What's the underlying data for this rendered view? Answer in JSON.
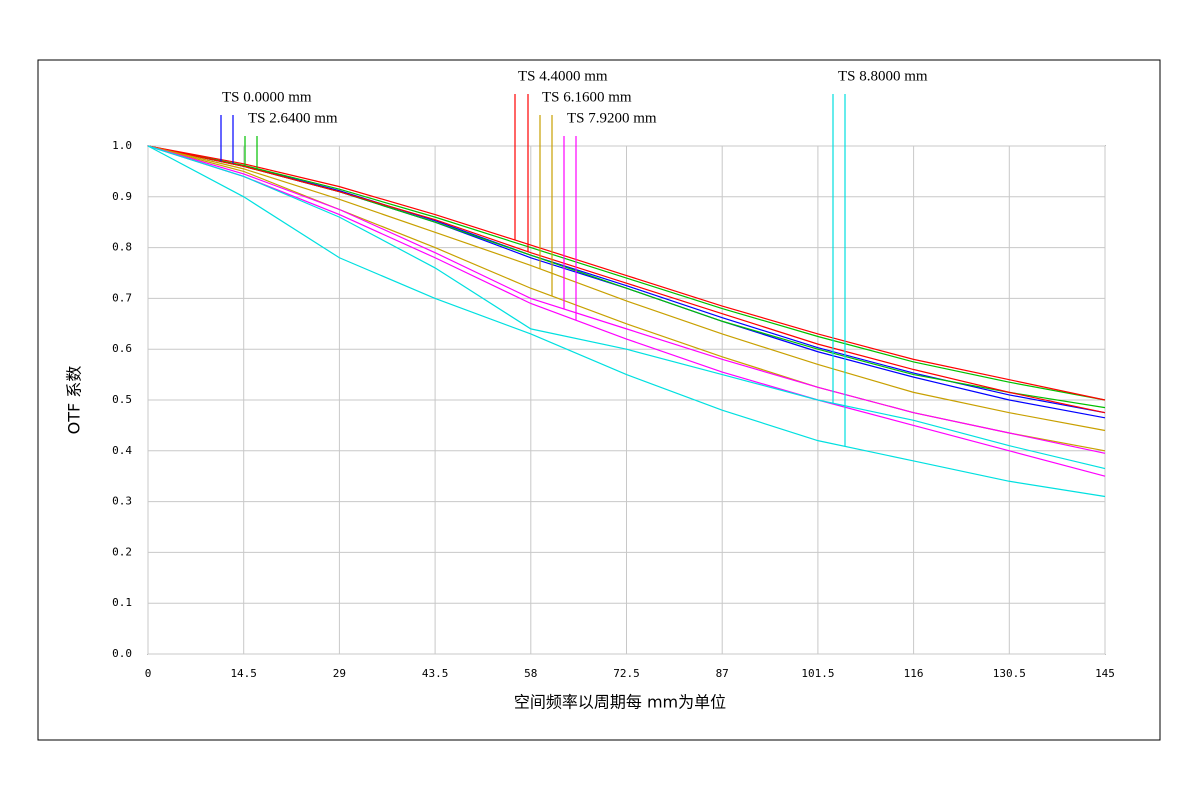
{
  "chart_data": {
    "type": "line",
    "xlabel": "空间频率以周期每 mm为单位",
    "ylabel": "OTF 系数",
    "x": [
      0,
      14.5,
      29,
      43.5,
      58,
      72.5,
      87,
      101.5,
      116,
      130.5,
      145
    ],
    "legend": [
      "TS 0.0000 mm",
      "TS 2.6400 mm",
      "TS 4.4000 mm",
      "TS 6.1600 mm",
      "TS 7.9200 mm",
      "TS 8.8000 mm"
    ],
    "series": [
      {
        "color": "#0000ff",
        "values": [
          1,
          0.96,
          0.91,
          0.85,
          0.78,
          0.72,
          0.655,
          0.595,
          0.545,
          0.5,
          0.465
        ]
      },
      {
        "color": "#0000ff",
        "values": [
          1,
          0.961,
          0.912,
          0.853,
          0.785,
          0.725,
          0.662,
          0.603,
          0.553,
          0.51,
          0.475
        ]
      },
      {
        "color": "#00c000",
        "values": [
          1,
          0.962,
          0.915,
          0.86,
          0.8,
          0.74,
          0.68,
          0.625,
          0.575,
          0.535,
          0.5
        ]
      },
      {
        "color": "#00c000",
        "values": [
          1,
          0.96,
          0.91,
          0.85,
          0.785,
          0.72,
          0.655,
          0.6,
          0.55,
          0.515,
          0.485
        ]
      },
      {
        "color": "#ff0000",
        "values": [
          1,
          0.965,
          0.92,
          0.865,
          0.805,
          0.745,
          0.685,
          0.63,
          0.58,
          0.54,
          0.5
        ]
      },
      {
        "color": "#ff0000",
        "values": [
          1,
          0.96,
          0.91,
          0.855,
          0.79,
          0.73,
          0.67,
          0.61,
          0.56,
          0.515,
          0.475
        ]
      },
      {
        "color": "#c8a000",
        "values": [
          1,
          0.955,
          0.895,
          0.83,
          0.765,
          0.695,
          0.63,
          0.57,
          0.515,
          0.475,
          0.44
        ]
      },
      {
        "color": "#c8a000",
        "values": [
          1,
          0.95,
          0.875,
          0.8,
          0.72,
          0.65,
          0.585,
          0.525,
          0.475,
          0.435,
          0.4
        ]
      },
      {
        "color": "#ff00ff",
        "values": [
          1,
          0.945,
          0.875,
          0.79,
          0.7,
          0.64,
          0.58,
          0.525,
          0.475,
          0.435,
          0.395
        ]
      },
      {
        "color": "#ff00ff",
        "values": [
          1,
          0.94,
          0.865,
          0.78,
          0.69,
          0.62,
          0.555,
          0.5,
          0.45,
          0.4,
          0.35
        ]
      },
      {
        "color": "#00e0e0",
        "values": [
          1,
          0.94,
          0.86,
          0.76,
          0.64,
          0.6,
          0.55,
          0.5,
          0.46,
          0.41,
          0.365
        ]
      },
      {
        "color": "#00e0e0",
        "values": [
          1,
          0.9,
          0.78,
          0.7,
          0.63,
          0.55,
          0.48,
          0.42,
          0.38,
          0.34,
          0.31
        ]
      }
    ],
    "xlim": [
      0,
      145
    ],
    "ylim": [
      0,
      1
    ],
    "xticks": [
      0,
      14.5,
      29,
      43.5,
      58,
      72.5,
      87,
      101.5,
      116,
      130.5,
      145
    ],
    "yticks": [
      {
        "value": 0,
        "label": "0.0"
      },
      0.1,
      0.2,
      0.3,
      0.4,
      0.5,
      0.6,
      0.7,
      0.8,
      0.9,
      {
        "value": 1,
        "label": "1.0"
      }
    ],
    "grid": true
  }
}
